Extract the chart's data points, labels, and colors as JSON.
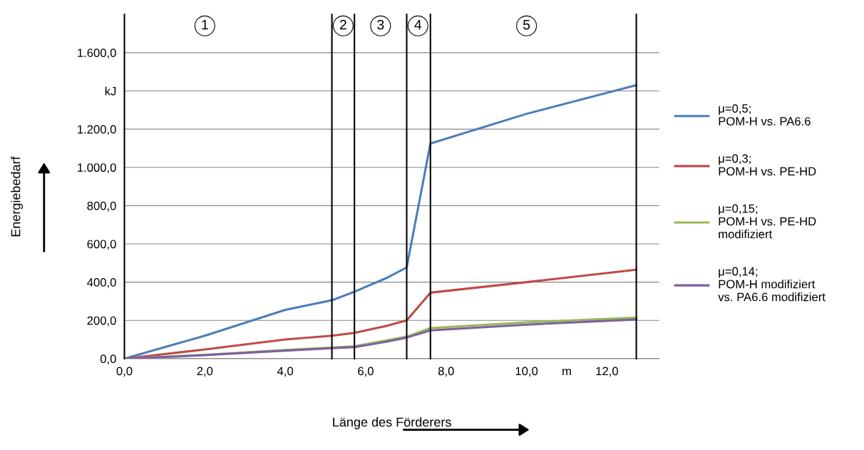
{
  "chart_data": {
    "type": "line",
    "xlabel": "Länge des Förderers",
    "ylabel": "Energiebedarf",
    "xlim": [
      0,
      13.3
    ],
    "ylim": [
      0,
      1800
    ],
    "xticks": [
      {
        "value": 0,
        "label": "0,0"
      },
      {
        "value": 2,
        "label": "2,0"
      },
      {
        "value": 4,
        "label": "4,0"
      },
      {
        "value": 6,
        "label": "6,0"
      },
      {
        "value": 8,
        "label": "8,0"
      },
      {
        "value": 10,
        "label": "10,0"
      },
      {
        "value": 11,
        "label": "m"
      },
      {
        "value": 12,
        "label": "12,0"
      }
    ],
    "yticks": [
      {
        "value": 0,
        "label": "0,0"
      },
      {
        "value": 200,
        "label": "200,0"
      },
      {
        "value": 400,
        "label": "400,0"
      },
      {
        "value": 600,
        "label": "600,0"
      },
      {
        "value": 800,
        "label": "800,0"
      },
      {
        "value": 1000,
        "label": "1.000,0"
      },
      {
        "value": 1200,
        "label": "1.200,0"
      },
      {
        "value": 1400,
        "label": "kJ"
      },
      {
        "value": 1600,
        "label": "1.600,0"
      }
    ],
    "grid": "y",
    "legend": "right",
    "marker": "none",
    "line_style": "solid",
    "ref_lines": [
      {
        "axis": "x",
        "value": 0,
        "color": "#000000"
      },
      {
        "axis": "x",
        "value": 5.16,
        "color": "#000000"
      },
      {
        "axis": "x",
        "value": 5.72,
        "color": "#000000"
      },
      {
        "axis": "x",
        "value": 7.02,
        "color": "#000000"
      },
      {
        "axis": "x",
        "value": 7.61,
        "color": "#000000"
      },
      {
        "axis": "x",
        "value": 12.73,
        "color": "#000000"
      }
    ],
    "annotations": [
      {
        "text": "1",
        "x": 2.0,
        "y": 1740
      },
      {
        "text": "2",
        "x": 5.44,
        "y": 1740
      },
      {
        "text": "3",
        "x": 6.37,
        "y": 1740
      },
      {
        "text": "4",
        "x": 7.3,
        "y": 1740
      },
      {
        "text": "5",
        "x": 10.0,
        "y": 1740
      }
    ],
    "x": [
      0,
      2,
      4,
      5.16,
      5.72,
      6.5,
      7.02,
      7.61,
      10,
      12.73
    ],
    "series": [
      {
        "name": "μ=0,5;\nPOM-H vs. PA6.6",
        "color": "#4a7ebb",
        "values": [
          0,
          120,
          255,
          305,
          350,
          420,
          477,
          1125,
          1280,
          1430
        ]
      },
      {
        "name": "μ=0,3;\nPOM-H vs. PE-HD",
        "color": "#be4b48",
        "values": [
          0,
          48,
          100,
          120,
          135,
          170,
          200,
          345,
          400,
          465
        ]
      },
      {
        "name": "μ=0,15;\nPOM-H vs. PE-HD\nmodifiziert",
        "color": "#98b954",
        "values": [
          0,
          20,
          45,
          58,
          65,
          95,
          115,
          160,
          190,
          215
        ]
      },
      {
        "name": "μ=0,14;\nPOM-H modifiziert\nvs. PA6.6 modifiziert",
        "color": "#7d60a0",
        "values": [
          0,
          18,
          42,
          55,
          60,
          88,
          110,
          148,
          178,
          205
        ]
      }
    ]
  }
}
